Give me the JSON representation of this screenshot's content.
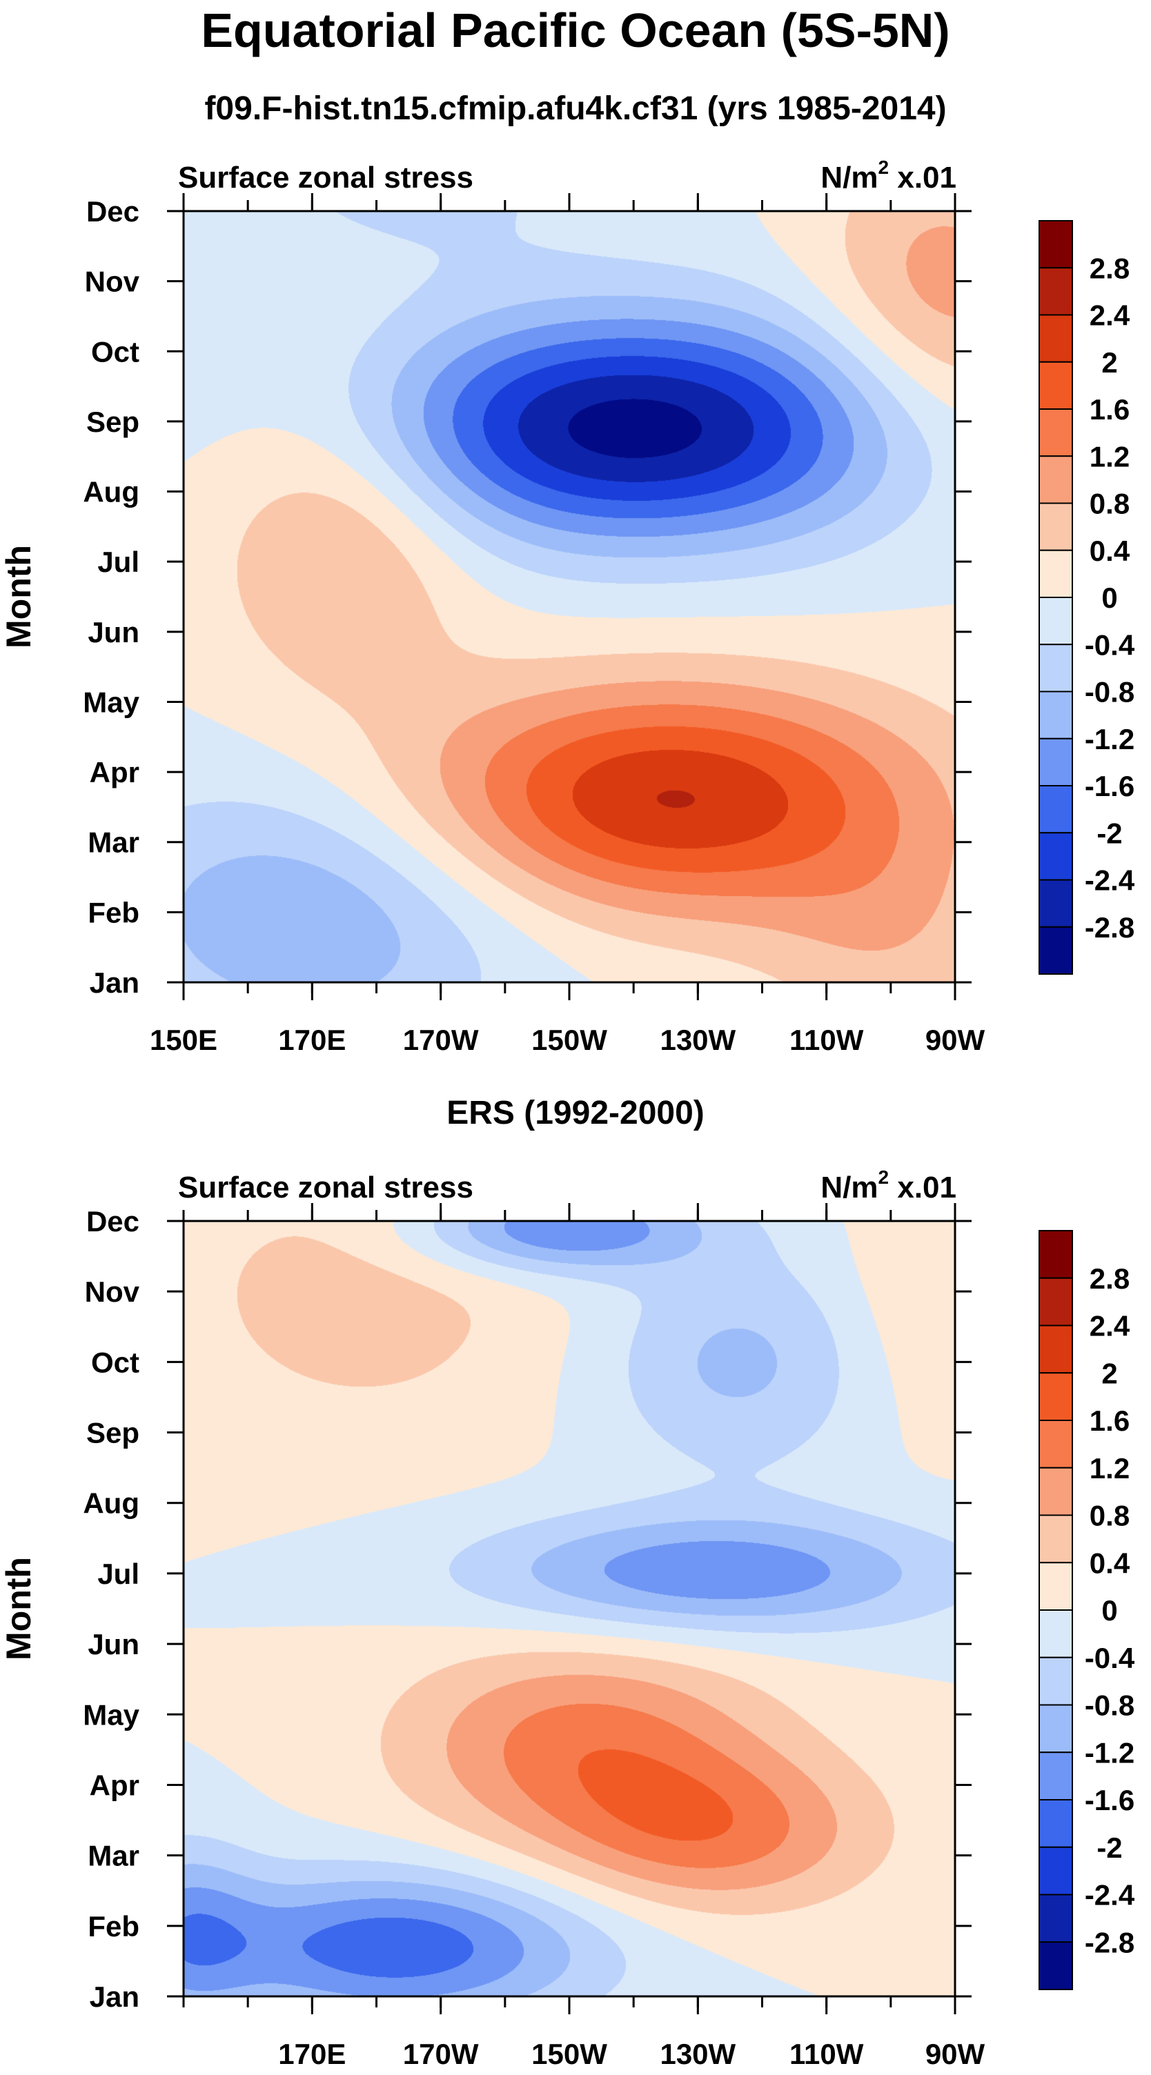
{
  "title": "Equatorial Pacific Ocean (5S-5N)",
  "colorbar": {
    "labels": [
      "2.8",
      "2.4",
      "2",
      "1.6",
      "1.2",
      "0.8",
      "0.4",
      "0",
      "-0.4",
      "-0.8",
      "-1.2",
      "-1.6",
      "-2",
      "-2.4",
      "-2.8"
    ],
    "colors": [
      "#7f0000",
      "#b2210e",
      "#d93a10",
      "#f25a25",
      "#f67a4b",
      "#f8a07c",
      "#fbc7ab",
      "#fde9d6",
      "#d9e9fa",
      "#bcd3fb",
      "#9cbcf9",
      "#6f96f4",
      "#3b68ec",
      "#1a3ed9",
      "#0d23a9",
      "#020a86"
    ]
  },
  "chart_data": [
    {
      "type": "heatmap",
      "title": "f09.F-hist.tn15.cfmip.afu4k.cf31 (yrs 1985-2014)",
      "left_label": "Surface zonal stress",
      "right_label_main": "N/m",
      "right_label_sup": "2",
      "right_label_tail": " x.01",
      "ylabel": "Month",
      "xlabel": "",
      "x_ticks": [
        "150E",
        "170E",
        "170W",
        "150W",
        "130W",
        "110W",
        "90W"
      ],
      "x_lim_deg_east": [
        150,
        270
      ],
      "y_ticks": [
        "Jan",
        "Feb",
        "Mar",
        "Apr",
        "May",
        "Jun",
        "Jul",
        "Aug",
        "Sep",
        "Oct",
        "Nov",
        "Dec"
      ],
      "levels": [
        -2.8,
        -2.4,
        -2,
        -1.6,
        -1.2,
        -0.8,
        -0.4,
        0,
        0.4,
        0.8,
        1.2,
        1.6,
        2,
        2.4,
        2.8
      ],
      "features": [
        {
          "kind": "min",
          "lon": 220,
          "month": 7.9,
          "amp": -3.0,
          "sx": 30,
          "sy": 1.15
        },
        {
          "kind": "max",
          "lon": 225,
          "month": 2.6,
          "amp": 2.45,
          "sx": 28,
          "sy": 1.15
        },
        {
          "kind": "max",
          "lon": 175,
          "month": 6.5,
          "amp": 1.05,
          "sx": 14,
          "sy": 1.6
        },
        {
          "kind": "min",
          "lon": 170,
          "month": 1.0,
          "amp": -1.2,
          "sx": 24,
          "sy": 1.4
        },
        {
          "kind": "min",
          "lon": 185,
          "month": 11.4,
          "amp": -0.5,
          "sx": 22,
          "sy": 0.9
        },
        {
          "kind": "max",
          "lon": 268,
          "month": 9.6,
          "amp": 1.1,
          "sx": 14,
          "sy": 1.6
        },
        {
          "kind": "max",
          "lon": 260,
          "month": 0.6,
          "amp": 0.6,
          "sx": 14,
          "sy": 1.1
        }
      ]
    },
    {
      "type": "heatmap",
      "title": "ERS (1992-2000)",
      "left_label": "Surface zonal stress",
      "right_label_main": "N/m",
      "right_label_sup": "2",
      "right_label_tail": " x.01",
      "ylabel": "Month",
      "xlabel": "",
      "x_ticks": [
        "170E",
        "170W",
        "150W",
        "130W",
        "110W",
        "90W"
      ],
      "x_lim_deg_east": [
        150,
        270
      ],
      "y_ticks": [
        "Jan",
        "Feb",
        "Mar",
        "Apr",
        "May",
        "Jun",
        "Jul",
        "Aug",
        "Sep",
        "Oct",
        "Nov",
        "Dec"
      ],
      "levels": [
        -2.8,
        -2.4,
        -2,
        -1.6,
        -1.2,
        -0.8,
        -0.4,
        0,
        0.4,
        0.8,
        1.2,
        1.6,
        2,
        2.4,
        2.8
      ],
      "features": [
        {
          "kind": "min",
          "lon": 183,
          "month": 0.7,
          "amp": -1.9,
          "sx": 22,
          "sy": 0.75
        },
        {
          "kind": "min",
          "lon": 150,
          "month": 0.9,
          "amp": -1.1,
          "sx": 8,
          "sy": 0.9
        },
        {
          "kind": "max",
          "lon": 212,
          "month": 3.6,
          "amp": 1.35,
          "sx": 20,
          "sy": 1.0
        },
        {
          "kind": "max",
          "lon": 232,
          "month": 2.3,
          "amp": 1.3,
          "sx": 18,
          "sy": 0.8
        },
        {
          "kind": "min",
          "lon": 232,
          "month": 6.0,
          "amp": -1.55,
          "sx": 26,
          "sy": 0.6
        },
        {
          "kind": "min",
          "lon": 208,
          "month": 10.9,
          "amp": -1.7,
          "sx": 16,
          "sy": 0.45
        },
        {
          "kind": "min",
          "lon": 236,
          "month": 9.0,
          "amp": -0.9,
          "sx": 15,
          "sy": 1.1
        },
        {
          "kind": "max",
          "lon": 178,
          "month": 10.0,
          "amp": 0.6,
          "sx": 22,
          "sy": 1.5
        },
        {
          "kind": "max",
          "lon": 267,
          "month": 10.0,
          "amp": 0.45,
          "sx": 10,
          "sy": 1.4
        }
      ]
    }
  ]
}
